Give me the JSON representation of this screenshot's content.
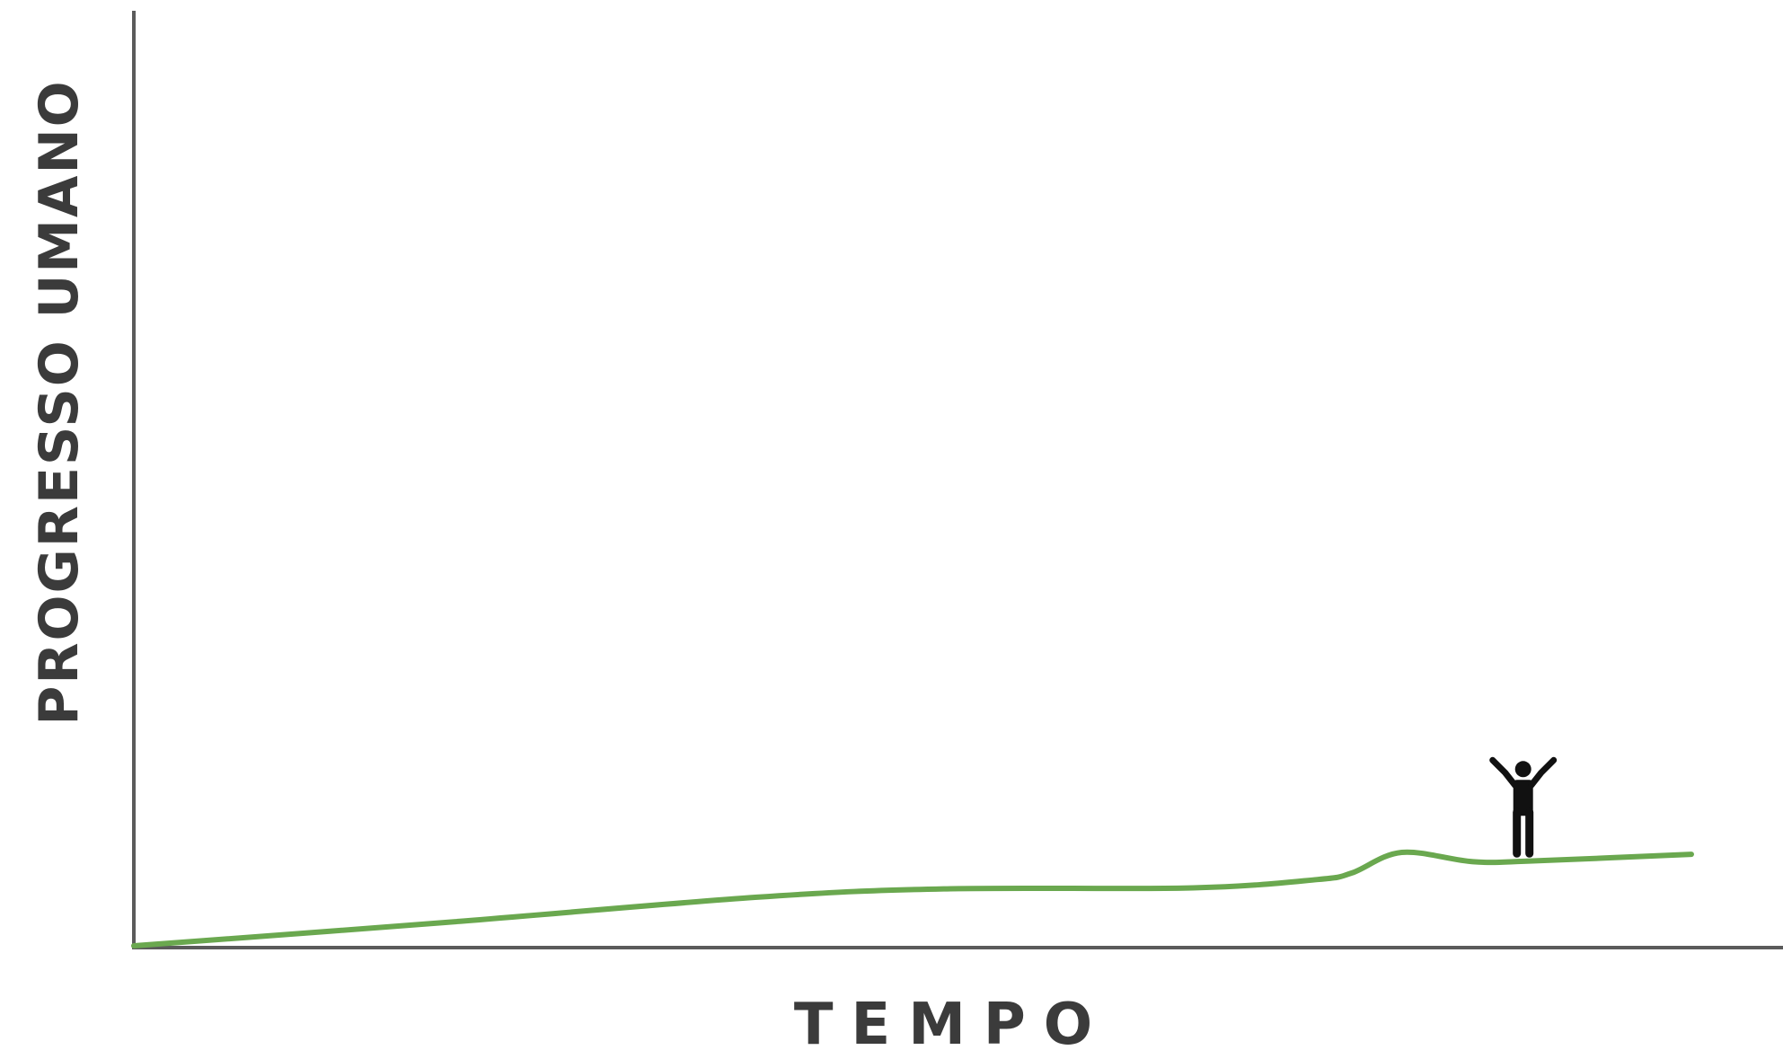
{
  "chart_data": {
    "type": "line",
    "title": "",
    "xlabel": "TEMPO",
    "ylabel": "PROGRESSO UMANO",
    "xlim": [
      0,
      100
    ],
    "ylim": [
      0,
      100
    ],
    "grid": false,
    "series": [
      {
        "color": "#6aa84f",
        "points": [
          [
            0,
            0
          ],
          [
            20,
            2.5
          ],
          [
            40,
            5.2
          ],
          [
            52,
            6.1
          ],
          [
            68,
            6.2
          ],
          [
            76,
            7.1
          ],
          [
            78.2,
            7.8
          ],
          [
            81.4,
            10
          ],
          [
            86,
            9
          ],
          [
            90,
            9.1
          ],
          [
            100,
            9.8
          ]
        ]
      }
    ],
    "annotations": [
      {
        "icon": "person-arms-raised-icon",
        "x": 89.2,
        "y": 9.3
      }
    ]
  }
}
